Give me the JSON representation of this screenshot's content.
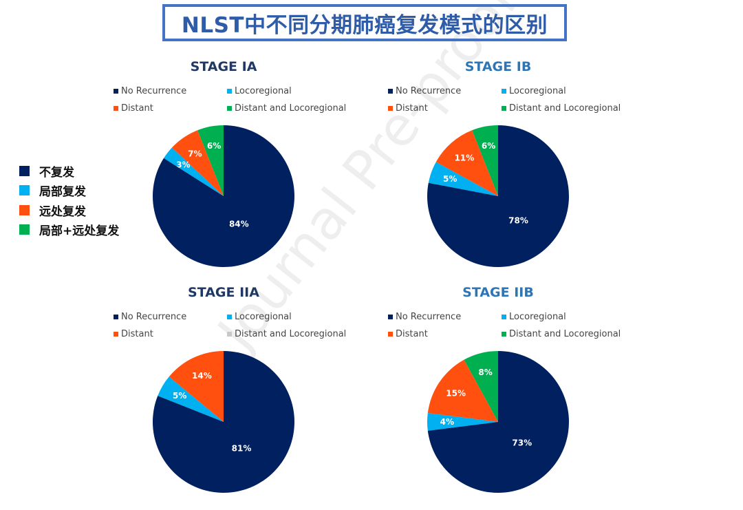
{
  "page_title": "NLST中不同分期肺癌复发模式的区别",
  "watermark": "Journal Pre-proof",
  "side_legend": [
    {
      "label": "不复发",
      "color": "#002060"
    },
    {
      "label": "局部复发",
      "color": "#00b0f0"
    },
    {
      "label": "远处复发",
      "color": "#ff5010"
    },
    {
      "label": "局部+远处复发",
      "color": "#00b050"
    }
  ],
  "chart_data": [
    {
      "type": "pie",
      "title": "STAGE IA",
      "title_color": "#1f3864",
      "legend": [
        {
          "label": "No Recurrence",
          "color": "#002060"
        },
        {
          "label": "Locoregional",
          "color": "#00b0f0"
        },
        {
          "label": "Distant",
          "color": "#ff5010"
        },
        {
          "label": "Distant and Locoregional",
          "color": "#00b050"
        }
      ],
      "slices": [
        {
          "label": "Distant and Locoregional",
          "value": 6,
          "display": "6%",
          "color": "#00b050"
        },
        {
          "label": "Distant",
          "value": 7,
          "display": "7%",
          "color": "#ff5010"
        },
        {
          "label": "Locoregional",
          "value": 3,
          "display": "3%",
          "color": "#00b0f0"
        },
        {
          "label": "No Recurrence",
          "value": 84,
          "display": "84%",
          "color": "#002060"
        }
      ]
    },
    {
      "type": "pie",
      "title": "STAGE IB",
      "title_color": "#2e75b6",
      "legend": [
        {
          "label": "No Recurrence",
          "color": "#002060"
        },
        {
          "label": "Locoregional",
          "color": "#00b0f0"
        },
        {
          "label": "Distant",
          "color": "#ff5010"
        },
        {
          "label": "Distant and Locoregional",
          "color": "#00b050"
        }
      ],
      "slices": [
        {
          "label": "Distant and Locoregional",
          "value": 6,
          "display": "6%",
          "color": "#00b050"
        },
        {
          "label": "Distant",
          "value": 11,
          "display": "11%",
          "color": "#ff5010"
        },
        {
          "label": "Locoregional",
          "value": 5,
          "display": "5%",
          "color": "#00b0f0"
        },
        {
          "label": "No Recurrence",
          "value": 78,
          "display": "78%",
          "color": "#002060"
        }
      ]
    },
    {
      "type": "pie",
      "title": "STAGE IIA",
      "title_color": "#1f3864",
      "legend": [
        {
          "label": "No Recurrence",
          "color": "#002060"
        },
        {
          "label": "Locoregional",
          "color": "#00b0f0"
        },
        {
          "label": "Distant",
          "color": "#ff5010"
        },
        {
          "label": "Distant and Locoregional",
          "color": "#c8c8c8"
        }
      ],
      "slices": [
        {
          "label": "Distant",
          "value": 14,
          "display": "14%",
          "color": "#ff5010"
        },
        {
          "label": "Locoregional",
          "value": 5,
          "display": "5%",
          "color": "#00b0f0"
        },
        {
          "label": "No Recurrence",
          "value": 81,
          "display": "81%",
          "color": "#002060"
        }
      ]
    },
    {
      "type": "pie",
      "title": "STAGE IIB",
      "title_color": "#2e75b6",
      "legend": [
        {
          "label": "No Recurrence",
          "color": "#002060"
        },
        {
          "label": "Locoregional",
          "color": "#00b0f0"
        },
        {
          "label": "Distant",
          "color": "#ff5010"
        },
        {
          "label": "Distant and Locoregional",
          "color": "#00b050"
        }
      ],
      "slices": [
        {
          "label": "Distant and Locoregional",
          "value": 8,
          "display": "8%",
          "color": "#00b050"
        },
        {
          "label": "Distant",
          "value": 15,
          "display": "15%",
          "color": "#ff5010"
        },
        {
          "label": "Locoregional",
          "value": 4,
          "display": "4%",
          "color": "#00b0f0"
        },
        {
          "label": "No Recurrence",
          "value": 73,
          "display": "73%",
          "color": "#002060"
        }
      ]
    }
  ]
}
